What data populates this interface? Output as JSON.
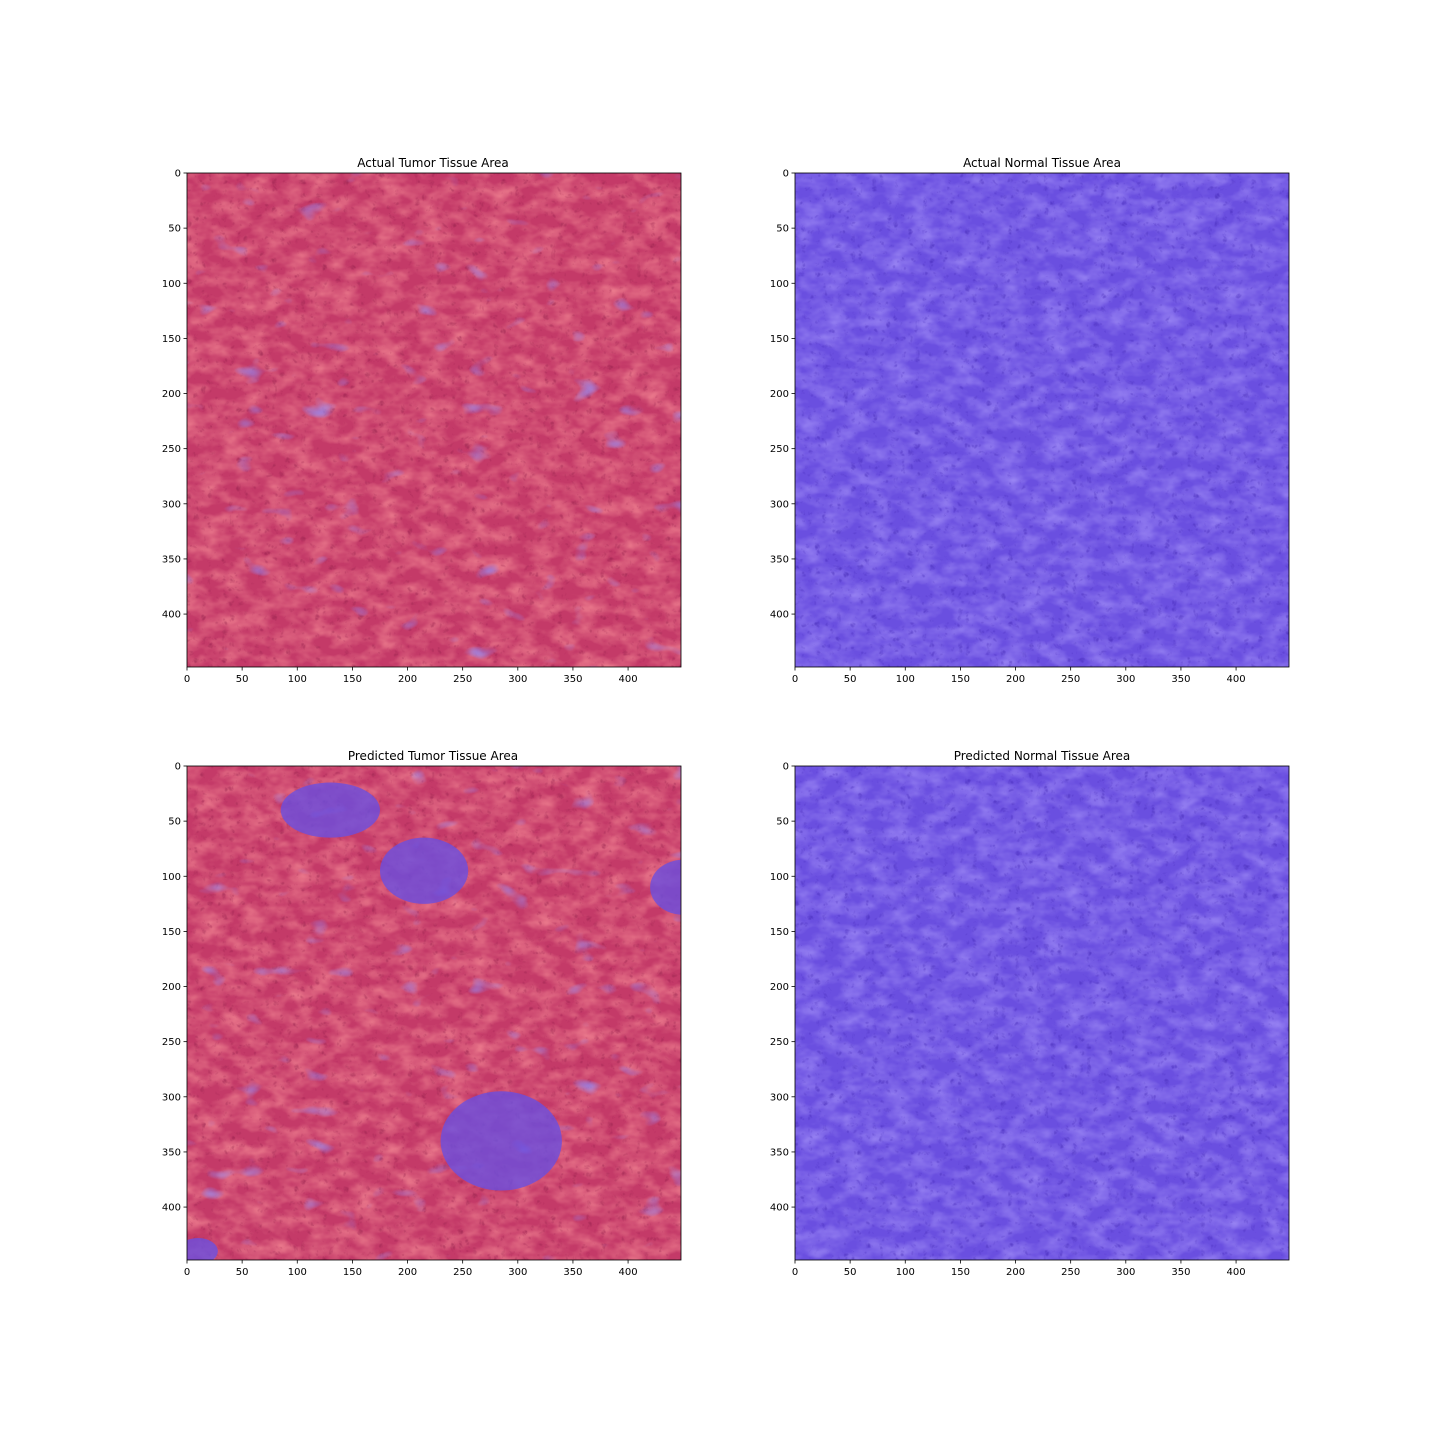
{
  "figure": {
    "panels": [
      {
        "title": "Actual Tumor Tissue Area",
        "overlay": "tumor",
        "predicted": false
      },
      {
        "title": "Actual Normal Tissue Area",
        "overlay": "normal",
        "predicted": false
      },
      {
        "title": "Predicted Tumor Tissue Area",
        "overlay": "tumor",
        "predicted": true
      },
      {
        "title": "Predicted Normal Tissue Area",
        "overlay": "normal",
        "predicted": true
      }
    ],
    "axes": {
      "x_ticks": [
        "0",
        "50",
        "100",
        "150",
        "200",
        "250",
        "300",
        "350",
        "400"
      ],
      "y_ticks": [
        "0",
        "50",
        "100",
        "150",
        "200",
        "250",
        "300",
        "350",
        "400"
      ],
      "range": [
        0,
        448
      ]
    }
  },
  "colors": {
    "tumor_base": "#c43a68",
    "tumor_light": "#ee7f8f",
    "tumor_dark": "#8e1c48",
    "normal_base": "#6a4fe0",
    "normal_light": "#9a86f4",
    "normal_dark": "#3e22b0",
    "background_blue": "#9292ff"
  }
}
